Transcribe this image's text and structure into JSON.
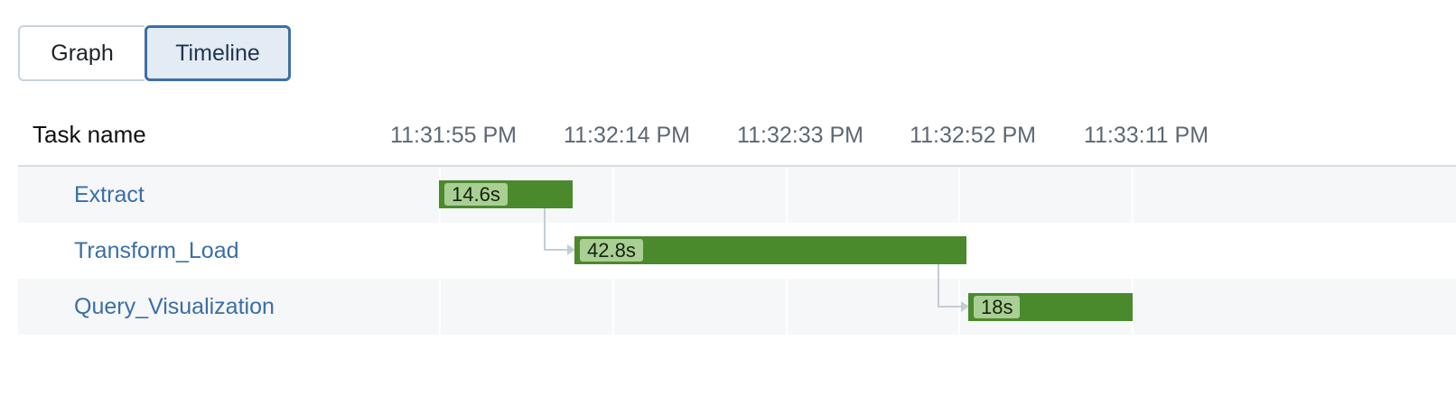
{
  "tabs": [
    {
      "label": "Graph",
      "active": false
    },
    {
      "label": "Timeline",
      "active": true
    }
  ],
  "header": {
    "task_name_label": "Task name"
  },
  "time_axis": {
    "ticks": [
      "11:31:55 PM",
      "11:32:14 PM",
      "11:32:33 PM",
      "11:32:52 PM",
      "11:33:11 PM"
    ]
  },
  "tasks": [
    {
      "name": "Extract",
      "duration_label": "14.6s"
    },
    {
      "name": "Transform_Load",
      "duration_label": "42.8s"
    },
    {
      "name": "Query_Visualization",
      "duration_label": "18s"
    }
  ],
  "colors": {
    "bar_fill": "#4a8a2c",
    "bar_label_bg": "#a9cf94",
    "task_link": "#3a6ea8",
    "active_tab_border": "#3d6fa5",
    "connector": "#c3cdd6"
  }
}
